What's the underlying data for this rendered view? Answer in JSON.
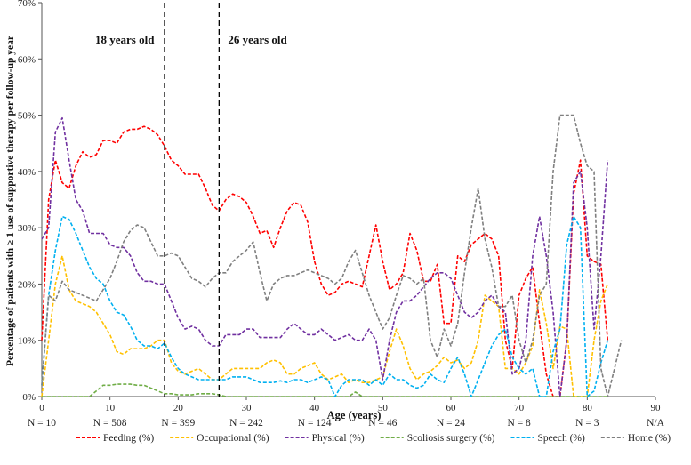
{
  "chart_data": {
    "type": "line",
    "title": "",
    "xlabel": "Age (years)",
    "ylabel": "Percentage of patients with ≥ 1 use of supportive therapy per follow-up year",
    "xlim": [
      0,
      90
    ],
    "ylim": [
      0,
      70
    ],
    "x_ticks": [
      "0",
      "10",
      "20",
      "30",
      "40",
      "50",
      "60",
      "70",
      "80",
      "90"
    ],
    "y_ticks": [
      "0%",
      "10%",
      "20%",
      "30%",
      "40%",
      "50%",
      "60%",
      "70%"
    ],
    "n_labels": [
      "N = 10",
      "N = 508",
      "N = 399",
      "N = 242",
      "N = 124",
      "N = 46",
      "N = 24",
      "N = 8",
      "N = 3",
      "N/A"
    ],
    "vlines": [
      {
        "x": 18,
        "label": "18 years old"
      },
      {
        "x": 26,
        "label": "26 years old"
      }
    ],
    "legend_position": "bottom",
    "series": [
      {
        "name": "Feeding (%)",
        "color": "#ff0000",
        "dash": "dashed",
        "x": [
          0,
          1,
          2,
          3,
          4,
          5,
          6,
          7,
          8,
          9,
          10,
          11,
          12,
          13,
          14,
          15,
          16,
          17,
          18,
          19,
          20,
          21,
          22,
          23,
          24,
          25,
          26,
          27,
          28,
          29,
          30,
          31,
          32,
          33,
          34,
          35,
          36,
          37,
          38,
          39,
          40,
          41,
          42,
          43,
          44,
          45,
          46,
          47,
          48,
          49,
          50,
          51,
          52,
          53,
          54,
          55,
          56,
          57,
          58,
          59,
          60,
          61,
          62,
          63,
          64,
          65,
          66,
          67,
          68,
          69,
          70,
          71,
          72,
          73,
          74,
          75,
          76,
          77,
          78,
          79,
          80,
          81,
          82,
          83
        ],
        "y": [
          10,
          35,
          42,
          38,
          37,
          41,
          43.5,
          42.5,
          43,
          45.5,
          45.5,
          45,
          47,
          47.5,
          47.5,
          48,
          47.5,
          46.5,
          44.5,
          42,
          41,
          39.5,
          39.5,
          39.5,
          37,
          34,
          33,
          35,
          36,
          35.5,
          34.5,
          32,
          29,
          29.5,
          26.5,
          30,
          33,
          34.5,
          34,
          31,
          24,
          20,
          18,
          18.5,
          20,
          20.5,
          20,
          19.5,
          25,
          30.5,
          24,
          19,
          20,
          22,
          29,
          26,
          20.5,
          20.5,
          23.5,
          13,
          13,
          25,
          24,
          27,
          28,
          29,
          28,
          25,
          10,
          5,
          18,
          21,
          23,
          13,
          4,
          0,
          0,
          10,
          36,
          42,
          25,
          24,
          23.5,
          10
        ]
      },
      {
        "name": "Occupational (%)",
        "color": "#ffc000",
        "dash": "dashed",
        "x": [
          0,
          1,
          2,
          3,
          4,
          5,
          6,
          7,
          8,
          9,
          10,
          11,
          12,
          13,
          14,
          15,
          16,
          17,
          18,
          19,
          20,
          21,
          22,
          23,
          24,
          25,
          26,
          27,
          28,
          29,
          30,
          31,
          32,
          33,
          34,
          35,
          36,
          37,
          38,
          39,
          40,
          41,
          42,
          43,
          44,
          45,
          46,
          47,
          48,
          49,
          50,
          51,
          52,
          53,
          54,
          55,
          56,
          57,
          58,
          59,
          60,
          61,
          62,
          63,
          64,
          65,
          66,
          67,
          68,
          69,
          70,
          71,
          72,
          73,
          74,
          75,
          76,
          77,
          78,
          79,
          80,
          81,
          82,
          83
        ],
        "y": [
          0,
          10,
          20,
          25,
          19,
          17,
          16.5,
          16,
          15,
          13,
          11,
          8,
          7.5,
          8.5,
          8.5,
          8.5,
          9,
          10,
          10,
          6,
          4.5,
          4,
          4.5,
          5,
          4,
          3,
          3,
          4,
          5,
          5,
          5,
          5,
          5,
          6,
          6.5,
          6,
          4,
          4,
          5,
          5.5,
          6,
          4,
          3,
          3.5,
          4,
          2.5,
          3,
          2.5,
          2.5,
          3,
          3.5,
          8,
          12,
          9,
          5,
          3,
          4,
          4.5,
          5.5,
          7,
          6,
          6.5,
          5,
          6,
          10,
          18,
          17,
          16,
          5,
          5,
          4,
          6,
          9,
          19,
          13,
          5,
          12.5,
          12,
          0,
          0,
          0,
          10,
          17,
          20
        ]
      },
      {
        "name": "Physical (%)",
        "color": "#7030a0",
        "dash": "dashed",
        "x": [
          0,
          1,
          2,
          3,
          4,
          5,
          6,
          7,
          8,
          9,
          10,
          11,
          12,
          13,
          14,
          15,
          16,
          17,
          18,
          19,
          20,
          21,
          22,
          23,
          24,
          25,
          26,
          27,
          28,
          29,
          30,
          31,
          32,
          33,
          34,
          35,
          36,
          37,
          38,
          39,
          40,
          41,
          42,
          43,
          44,
          45,
          46,
          47,
          48,
          49,
          50,
          51,
          52,
          53,
          54,
          55,
          56,
          57,
          58,
          59,
          60,
          61,
          62,
          63,
          64,
          65,
          66,
          67,
          68,
          69,
          70,
          71,
          72,
          73,
          74,
          75,
          76,
          77,
          78,
          79,
          80,
          81,
          82,
          83
        ],
        "y": [
          28,
          30,
          47,
          49.5,
          42,
          35,
          33,
          29,
          29,
          29,
          27,
          26.5,
          26.5,
          25,
          22,
          20.5,
          20.5,
          20,
          20,
          17,
          14,
          12,
          12.5,
          12,
          10,
          9,
          9,
          11,
          11,
          11,
          12,
          12,
          10.5,
          10.5,
          10.5,
          10.5,
          12,
          13,
          12,
          11,
          11,
          12,
          11,
          10,
          10.5,
          11,
          10,
          10,
          12,
          10,
          3,
          10,
          15,
          17,
          17,
          18,
          19.5,
          21,
          22,
          22,
          21,
          18,
          15,
          14,
          15,
          17,
          18,
          16,
          15,
          4,
          5,
          10,
          25,
          32,
          25,
          15,
          0,
          10,
          38,
          40,
          30,
          12,
          25,
          42
        ]
      },
      {
        "name": "Scoliosis surgery (%)",
        "color": "#70ad47",
        "dash": "dashed",
        "x": [
          0,
          5,
          6,
          7,
          8,
          9,
          10,
          11,
          12,
          13,
          14,
          15,
          16,
          17,
          18,
          19,
          20,
          21,
          22,
          23,
          24,
          25,
          26,
          27,
          28,
          29,
          30,
          35,
          40,
          45,
          46,
          47,
          48,
          49,
          50,
          51,
          52,
          53,
          54,
          55,
          56,
          57,
          58,
          59,
          60,
          61,
          62,
          63,
          64,
          65,
          66,
          67,
          68,
          69,
          70,
          71,
          72,
          73,
          74,
          75,
          76,
          77,
          78,
          79,
          80,
          81,
          82,
          83
        ],
        "y": [
          0,
          0,
          0,
          0,
          1,
          2,
          2,
          2.2,
          2.2,
          2.2,
          2,
          2,
          1.5,
          1,
          0.5,
          0.5,
          0.3,
          0.3,
          0.3,
          0.5,
          0.5,
          0.5,
          0.3,
          0,
          0,
          0,
          0,
          0,
          0,
          0,
          0.8,
          0,
          0,
          0,
          0,
          0,
          0,
          0,
          0,
          0,
          0,
          0,
          0,
          0,
          0,
          0,
          0,
          0,
          0,
          0,
          0,
          0,
          0,
          0,
          0,
          0,
          0,
          0,
          0,
          0,
          0,
          0,
          0,
          0,
          0,
          0,
          0,
          0
        ]
      },
      {
        "name": "Speech (%)",
        "color": "#00b0f0",
        "dash": "dashed",
        "x": [
          0,
          1,
          2,
          3,
          4,
          5,
          6,
          7,
          8,
          9,
          10,
          11,
          12,
          13,
          14,
          15,
          16,
          17,
          18,
          19,
          20,
          21,
          22,
          23,
          24,
          25,
          26,
          27,
          28,
          29,
          30,
          31,
          32,
          33,
          34,
          35,
          36,
          37,
          38,
          39,
          40,
          41,
          42,
          43,
          44,
          45,
          46,
          47,
          48,
          49,
          50,
          51,
          52,
          53,
          54,
          55,
          56,
          57,
          58,
          59,
          60,
          61,
          62,
          63,
          64,
          65,
          66,
          67,
          68,
          69,
          70,
          71,
          72,
          73,
          74,
          75,
          76,
          77,
          78,
          79,
          80,
          81,
          82,
          83
        ],
        "y": [
          2,
          18,
          26,
          32,
          31.5,
          29,
          26,
          23,
          21,
          20,
          17,
          15,
          14.5,
          12.5,
          10,
          9,
          9,
          8.5,
          9.5,
          7,
          5,
          4,
          3.5,
          3,
          3,
          3,
          3,
          3,
          3.5,
          3.5,
          3.5,
          3,
          2.5,
          2.5,
          2.5,
          2.8,
          2.5,
          3,
          3,
          2.5,
          3,
          3.5,
          3,
          0,
          2,
          3,
          3,
          3,
          2,
          3,
          2,
          4,
          3,
          3,
          2,
          1.5,
          2,
          4,
          3,
          2.5,
          5,
          7,
          4,
          0,
          3,
          6,
          9,
          11,
          12,
          7,
          5,
          4,
          5,
          0,
          0,
          8,
          12,
          27,
          32,
          30,
          0,
          1,
          6,
          10
        ]
      },
      {
        "name": "Home (%)",
        "color": "#7f7f7f",
        "dash": "dashed",
        "x": [
          0,
          1,
          2,
          3,
          4,
          5,
          6,
          7,
          8,
          9,
          10,
          11,
          12,
          13,
          14,
          15,
          16,
          17,
          18,
          19,
          20,
          21,
          22,
          23,
          24,
          25,
          26,
          27,
          28,
          29,
          30,
          31,
          32,
          33,
          34,
          35,
          36,
          37,
          38,
          39,
          40,
          41,
          42,
          43,
          44,
          45,
          46,
          47,
          48,
          49,
          50,
          51,
          52,
          53,
          54,
          55,
          56,
          57,
          58,
          59,
          60,
          61,
          62,
          63,
          64,
          65,
          66,
          67,
          68,
          69,
          70,
          71,
          72,
          73,
          74,
          75,
          76,
          77,
          78,
          79,
          80,
          81,
          82,
          83,
          84,
          85
        ],
        "y": [
          2,
          18,
          17,
          20.5,
          19,
          18.5,
          18,
          17.5,
          17,
          19,
          21,
          24,
          27.5,
          29.5,
          30.5,
          30,
          27.5,
          25,
          25,
          25.5,
          25,
          23,
          21,
          20.5,
          19.5,
          21,
          22,
          22,
          24,
          25,
          26,
          27.5,
          22,
          17,
          20,
          21,
          21.5,
          21.5,
          22,
          22.5,
          22,
          21.5,
          21,
          20,
          21,
          24,
          26,
          22,
          18,
          15,
          12,
          14,
          18,
          21.5,
          21,
          20,
          21,
          10,
          7,
          12,
          9,
          13,
          22,
          30,
          37,
          28,
          23,
          16,
          16,
          18,
          10,
          6,
          10,
          18,
          20,
          40,
          50,
          50,
          50,
          45,
          41,
          40,
          5,
          0,
          5,
          10
        ]
      }
    ]
  }
}
